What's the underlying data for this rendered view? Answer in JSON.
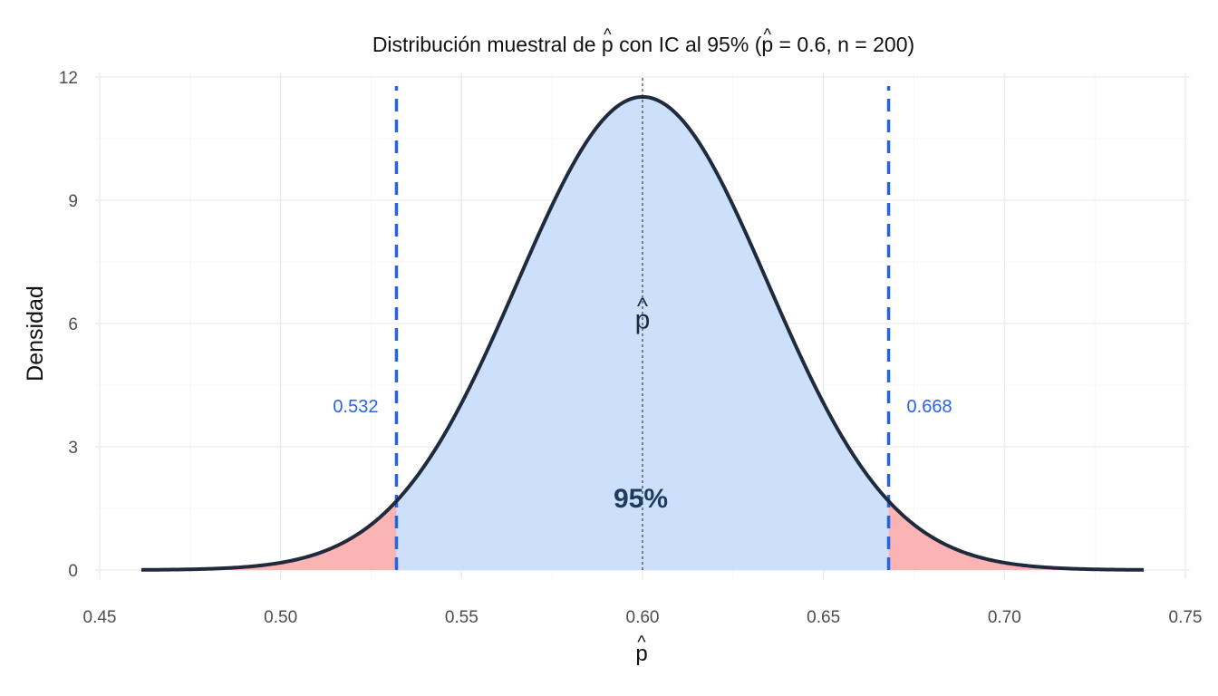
{
  "chart_data": {
    "type": "area",
    "title": {
      "lead": "Distribución muestral de ",
      "mid": " con IC al 95%  (",
      "eq": " = 0.6, n = 200)",
      "hat_symbol": "p"
    },
    "xlabel": "p",
    "ylabel": "Densidad",
    "xlim": [
      0.45,
      0.75
    ],
    "ylim": [
      0,
      12
    ],
    "x_ticks": [
      "0.45",
      "0.50",
      "0.55",
      "0.60",
      "0.65",
      "0.70",
      "0.75"
    ],
    "y_ticks": [
      "0",
      "3",
      "6",
      "9",
      "12"
    ],
    "grid": true,
    "distribution": {
      "family": "normal",
      "mean": 0.6,
      "sd": 0.03464,
      "x_range": [
        0.4615,
        0.7385
      ]
    },
    "regions": [
      {
        "name": "lower tail",
        "from": 0.4615,
        "to": 0.532,
        "color": "#fbb4b4"
      },
      {
        "name": "central interval",
        "from": 0.532,
        "to": 0.668,
        "color": "#cce0fb"
      },
      {
        "name": "upper tail",
        "from": 0.668,
        "to": 0.7385,
        "color": "#fbb4b4"
      }
    ],
    "ci_lines": [
      {
        "x": 0.532,
        "label": "0.532",
        "color": "#2563eb"
      },
      {
        "x": 0.668,
        "label": "0.668",
        "color": "#2563eb"
      }
    ],
    "center_line": {
      "x": 0.6
    },
    "annotations": {
      "center_symbol": "p",
      "center_symbol_x": 0.6,
      "center_symbol_y": 6.1,
      "area_label": "95%",
      "area_label_x": 0.6,
      "area_label_y": 1.9
    },
    "colors": {
      "curve": "#1f2a3c",
      "ci": "#2563eb",
      "area_text": "#1f3a5f"
    }
  }
}
